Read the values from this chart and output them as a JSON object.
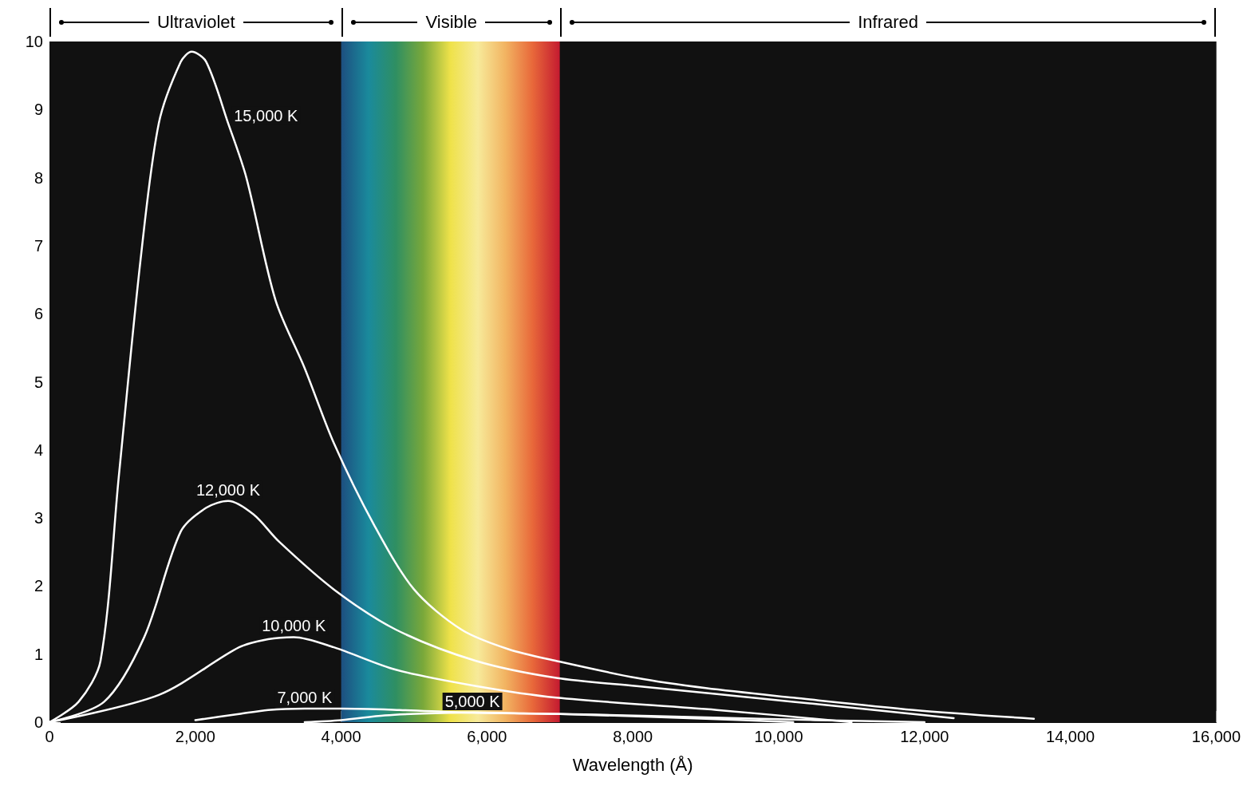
{
  "chart_data": {
    "type": "line",
    "xlabel": "Wavelength (Å)",
    "xlim": [
      0,
      16000
    ],
    "xticks": [
      0,
      {
        "value": 2000,
        "label": "2,000"
      },
      {
        "value": 4000,
        "label": "4,000"
      },
      {
        "value": 6000,
        "label": "6,000"
      },
      {
        "value": 8000,
        "label": "8,000"
      },
      {
        "value": 10000,
        "label": "10,000"
      },
      {
        "value": 12000,
        "label": "12,000"
      },
      {
        "value": 14000,
        "label": "14,000"
      },
      {
        "value": 16000,
        "label": "16,000"
      }
    ],
    "ylim": [
      0,
      10
    ],
    "yticks": [
      0,
      1,
      2,
      3,
      4,
      5,
      6,
      7,
      8,
      9,
      10
    ],
    "grid": false,
    "legend": false,
    "marker": "none",
    "line_style": "solid",
    "bands": [
      {
        "axis": "x",
        "from": 0,
        "to": 4000,
        "label": "Ultraviolet",
        "color": "#111111"
      },
      {
        "axis": "x",
        "from": 4000,
        "to": 7000,
        "label": "Visible"
      },
      {
        "axis": "x",
        "from": 7000,
        "to": 16000,
        "label": "Infrared",
        "color": "#111111"
      }
    ],
    "series": [
      {
        "name": "15,000 K",
        "color": "#ffffff",
        "x": [
          0,
          400,
          700,
          950,
          1250,
          1500,
          1800,
          1950,
          2150,
          2450,
          2700,
          3100,
          3500,
          3900,
          4450,
          5000,
          5650,
          6300,
          6950,
          8050,
          9000,
          10200,
          11850,
          13500
        ],
        "values": [
          0,
          0.3,
          0.9,
          3.6,
          6.8,
          8.8,
          9.7,
          9.85,
          9.7,
          8.8,
          8.0,
          6.2,
          5.2,
          4.1,
          2.9,
          1.95,
          1.36,
          1.07,
          0.9,
          0.65,
          0.5,
          0.36,
          0.18,
          0.05
        ]
      },
      {
        "name": "12,000 K",
        "color": "#ffffff",
        "x": [
          0,
          750,
          1300,
          1800,
          2150,
          2450,
          2800,
          3150,
          3900,
          4750,
          5850,
          6950,
          8050,
          10200,
          12400
        ],
        "values": [
          0,
          0.3,
          1.25,
          2.8,
          3.15,
          3.25,
          3.05,
          2.65,
          1.95,
          1.36,
          0.9,
          0.65,
          0.53,
          0.3,
          0.06
        ]
      },
      {
        "name": "10,000 K",
        "color": "#ffffff",
        "x": [
          0,
          1500,
          2600,
          3000,
          3350,
          3900,
          4750,
          5850,
          6950,
          9150,
          11000
        ],
        "values": [
          0,
          0.4,
          1.1,
          1.22,
          1.25,
          1.1,
          0.77,
          0.53,
          0.36,
          0.18,
          0
        ]
      },
      {
        "name": "7,000 K",
        "color": "#ffffff",
        "x": [
          2000,
          2600,
          3000,
          3500,
          4000,
          4800,
          5800,
          7000,
          9000,
          10200
        ],
        "values": [
          0.03,
          0.12,
          0.18,
          0.2,
          0.2,
          0.18,
          0.14,
          0.12,
          0.05,
          0
        ]
      },
      {
        "name": "5,000 K",
        "color": "#ffffff",
        "x": [
          3500,
          4000,
          4600,
          5200,
          5800,
          6500,
          7500,
          9000,
          10500,
          12000
        ],
        "values": [
          0,
          0.03,
          0.1,
          0.13,
          0.14,
          0.13,
          0.11,
          0.07,
          0.03,
          0
        ]
      }
    ]
  }
}
